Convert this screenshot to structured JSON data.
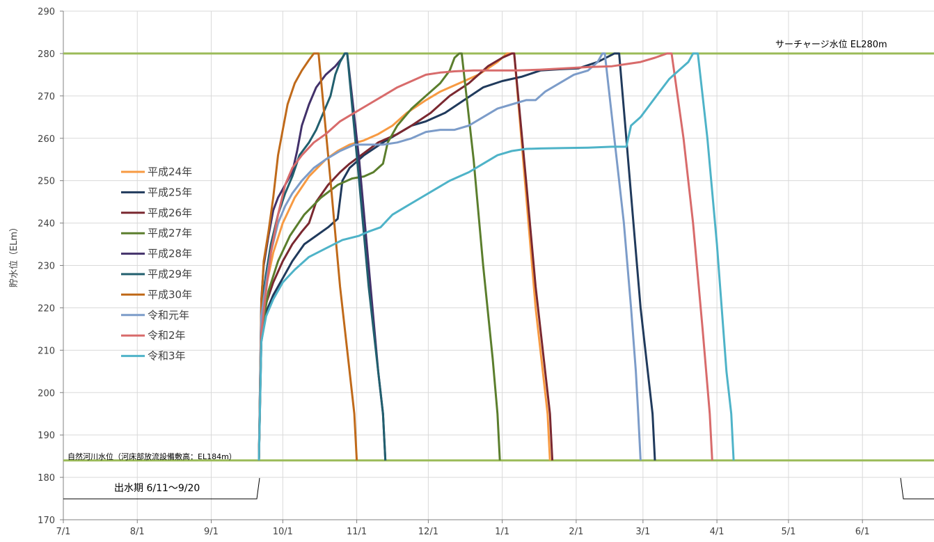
{
  "chart_data": {
    "type": "line",
    "title": "",
    "ylabel": "貯水位（ELm）",
    "ylim": [
      170,
      290
    ],
    "yticks": [
      170,
      180,
      190,
      200,
      210,
      220,
      230,
      240,
      250,
      260,
      270,
      280,
      290
    ],
    "x_tick_labels": [
      "7/1",
      "8/1",
      "9/1",
      "10/1",
      "11/1",
      "12/1",
      "1/1",
      "2/1",
      "3/1",
      "4/1",
      "5/1",
      "6/1"
    ],
    "x_unit": "days since 7/1",
    "xlim": [
      0,
      365
    ],
    "grid": true,
    "legend_position": "left",
    "annotations": {
      "surcharge_label": "サーチャージ水位 EL280m",
      "surcharge_level": 280,
      "river_label": "自然河川水位（河床部放流設備敷高：EL184m）",
      "river_level": 184,
      "flood_period_label": "出水期 6/11～9/20"
    },
    "series": [
      {
        "name": "平成24年",
        "color": "#F79A42",
        "points": [
          [
            82,
            184
          ],
          [
            83,
            215
          ],
          [
            85,
            225
          ],
          [
            88,
            233
          ],
          [
            92,
            240
          ],
          [
            97,
            246
          ],
          [
            103,
            251
          ],
          [
            110,
            255
          ],
          [
            115,
            257
          ],
          [
            120,
            258.5
          ],
          [
            126,
            259.5
          ],
          [
            132,
            261
          ],
          [
            138,
            263
          ],
          [
            144,
            266
          ],
          [
            152,
            269
          ],
          [
            158,
            271
          ],
          [
            166,
            273
          ],
          [
            174,
            275
          ],
          [
            182,
            278
          ],
          [
            186,
            280
          ],
          [
            189,
            280
          ],
          [
            198,
            220
          ],
          [
            203,
            195
          ],
          [
            204,
            184
          ]
        ]
      },
      {
        "name": "平成25年",
        "color": "#203A5C",
        "points": [
          [
            82,
            184
          ],
          [
            83,
            212
          ],
          [
            85,
            219
          ],
          [
            88,
            223
          ],
          [
            92,
            227
          ],
          [
            96,
            231
          ],
          [
            101,
            235
          ],
          [
            106,
            237
          ],
          [
            111,
            239
          ],
          [
            115,
            241
          ],
          [
            117,
            250
          ],
          [
            120,
            253
          ],
          [
            126,
            256
          ],
          [
            134,
            259
          ],
          [
            140,
            261
          ],
          [
            146,
            263
          ],
          [
            152,
            264
          ],
          [
            160,
            266
          ],
          [
            168,
            269
          ],
          [
            176,
            272
          ],
          [
            184,
            273.5
          ],
          [
            192,
            274.5
          ],
          [
            200,
            276
          ],
          [
            208,
            276.3
          ],
          [
            216,
            276.5
          ],
          [
            224,
            278
          ],
          [
            231,
            280
          ],
          [
            233,
            280
          ],
          [
            236,
            260
          ],
          [
            242,
            220
          ],
          [
            247,
            195
          ],
          [
            248,
            184
          ]
        ]
      },
      {
        "name": "平成26年",
        "color": "#7A2830",
        "points": [
          [
            82,
            184
          ],
          [
            83,
            215
          ],
          [
            85,
            221
          ],
          [
            88,
            226
          ],
          [
            92,
            231
          ],
          [
            96,
            235
          ],
          [
            100,
            238
          ],
          [
            103,
            240
          ],
          [
            106,
            245
          ],
          [
            111,
            249
          ],
          [
            116,
            252
          ],
          [
            120,
            254
          ],
          [
            126,
            256.5
          ],
          [
            132,
            259
          ],
          [
            140,
            261
          ],
          [
            146,
            263
          ],
          [
            154,
            266
          ],
          [
            162,
            270
          ],
          [
            170,
            273
          ],
          [
            178,
            277
          ],
          [
            184,
            279
          ],
          [
            188,
            280
          ],
          [
            189,
            280
          ],
          [
            194,
            250
          ],
          [
            198,
            225
          ],
          [
            204,
            195
          ],
          [
            205,
            184
          ]
        ]
      },
      {
        "name": "平成27年",
        "color": "#5B7E2D",
        "points": [
          [
            82,
            184
          ],
          [
            83,
            214
          ],
          [
            86,
            224
          ],
          [
            90,
            231
          ],
          [
            95,
            237
          ],
          [
            101,
            242
          ],
          [
            108,
            246
          ],
          [
            115,
            249
          ],
          [
            121,
            250.5
          ],
          [
            126,
            251
          ],
          [
            130,
            252
          ],
          [
            134,
            254
          ],
          [
            136,
            259
          ],
          [
            140,
            263
          ],
          [
            146,
            267
          ],
          [
            152,
            270
          ],
          [
            158,
            273
          ],
          [
            162,
            276
          ],
          [
            164,
            279
          ],
          [
            166,
            280
          ],
          [
            167,
            280
          ],
          [
            172,
            255
          ],
          [
            176,
            230
          ],
          [
            180,
            208
          ],
          [
            182,
            195
          ],
          [
            183,
            184
          ]
        ]
      },
      {
        "name": "平成28年",
        "color": "#42316A",
        "points": [
          [
            82,
            184
          ],
          [
            83,
            222
          ],
          [
            84,
            230
          ],
          [
            86,
            237
          ],
          [
            88,
            243
          ],
          [
            90,
            246
          ],
          [
            93,
            249
          ],
          [
            96,
            252
          ],
          [
            98,
            257
          ],
          [
            100,
            263
          ],
          [
            103,
            268
          ],
          [
            106,
            272
          ],
          [
            110,
            275
          ],
          [
            114,
            277
          ],
          [
            117,
            279
          ],
          [
            118,
            280
          ],
          [
            119,
            280
          ],
          [
            124,
            255
          ],
          [
            128,
            230
          ],
          [
            132,
            205
          ],
          [
            134,
            195
          ],
          [
            135,
            184
          ]
        ]
      },
      {
        "name": "平成29年",
        "color": "#215F6E",
        "points": [
          [
            82,
            184
          ],
          [
            83,
            220
          ],
          [
            85,
            228
          ],
          [
            87,
            235
          ],
          [
            90,
            242
          ],
          [
            93,
            247
          ],
          [
            96,
            251
          ],
          [
            99,
            256
          ],
          [
            103,
            259
          ],
          [
            106,
            262
          ],
          [
            109,
            266
          ],
          [
            112,
            270
          ],
          [
            114,
            275
          ],
          [
            116,
            278
          ],
          [
            118,
            280
          ],
          [
            119,
            280
          ],
          [
            124,
            250
          ],
          [
            128,
            225
          ],
          [
            132,
            205
          ],
          [
            134,
            195
          ],
          [
            135,
            184
          ]
        ]
      },
      {
        "name": "平成30年",
        "color": "#C06A1A",
        "points": [
          [
            82,
            184
          ],
          [
            83,
            221
          ],
          [
            84,
            231
          ],
          [
            86,
            238
          ],
          [
            87,
            242
          ],
          [
            88,
            246
          ],
          [
            90,
            256
          ],
          [
            92,
            262
          ],
          [
            94,
            268
          ],
          [
            97,
            273
          ],
          [
            100,
            276
          ],
          [
            103,
            278.5
          ],
          [
            105,
            280
          ],
          [
            107,
            280
          ],
          [
            112,
            250
          ],
          [
            116,
            225
          ],
          [
            120,
            205
          ],
          [
            122,
            195
          ],
          [
            123,
            184
          ]
        ]
      },
      {
        "name": "令和元年",
        "color": "#7C9CC9",
        "points": [
          [
            82,
            184
          ],
          [
            83,
            218
          ],
          [
            85,
            226
          ],
          [
            87,
            233
          ],
          [
            90,
            240
          ],
          [
            93,
            244
          ],
          [
            96,
            247
          ],
          [
            100,
            250
          ],
          [
            105,
            253
          ],
          [
            110,
            255
          ],
          [
            116,
            257
          ],
          [
            122,
            258.5
          ],
          [
            128,
            258.5
          ],
          [
            134,
            258.5
          ],
          [
            140,
            259
          ],
          [
            146,
            260
          ],
          [
            152,
            261.5
          ],
          [
            158,
            262
          ],
          [
            164,
            262
          ],
          [
            170,
            263
          ],
          [
            176,
            265
          ],
          [
            182,
            267
          ],
          [
            188,
            268
          ],
          [
            194,
            269
          ],
          [
            198,
            269
          ],
          [
            202,
            271
          ],
          [
            208,
            273
          ],
          [
            214,
            275
          ],
          [
            220,
            276
          ],
          [
            224,
            278
          ],
          [
            226,
            280
          ],
          [
            227,
            280
          ],
          [
            231,
            260
          ],
          [
            235,
            240
          ],
          [
            238,
            220
          ],
          [
            240,
            205
          ],
          [
            241,
            195
          ],
          [
            242,
            184
          ]
        ]
      },
      {
        "name": "令和2年",
        "color": "#D86B6B",
        "points": [
          [
            82,
            184
          ],
          [
            83,
            214
          ],
          [
            85,
            224
          ],
          [
            87,
            233
          ],
          [
            90,
            242
          ],
          [
            93,
            249
          ],
          [
            96,
            253
          ],
          [
            100,
            256
          ],
          [
            105,
            259
          ],
          [
            110,
            261
          ],
          [
            116,
            264
          ],
          [
            122,
            266
          ],
          [
            128,
            268
          ],
          [
            134,
            270
          ],
          [
            140,
            272
          ],
          [
            146,
            273.5
          ],
          [
            152,
            275
          ],
          [
            158,
            275.5
          ],
          [
            164,
            275.8
          ],
          [
            172,
            276
          ],
          [
            180,
            276
          ],
          [
            190,
            276
          ],
          [
            200,
            276.2
          ],
          [
            210,
            276.5
          ],
          [
            220,
            276.8
          ],
          [
            230,
            277
          ],
          [
            236,
            277.5
          ],
          [
            242,
            278
          ],
          [
            248,
            279
          ],
          [
            253,
            280
          ],
          [
            255,
            280
          ],
          [
            260,
            260
          ],
          [
            264,
            240
          ],
          [
            268,
            215
          ],
          [
            271,
            195
          ],
          [
            272,
            184
          ]
        ]
      },
      {
        "name": "令和3年",
        "color": "#4EB3C8",
        "points": [
          [
            82,
            184
          ],
          [
            83,
            212
          ],
          [
            85,
            218
          ],
          [
            88,
            222
          ],
          [
            92,
            226
          ],
          [
            97,
            229
          ],
          [
            103,
            232
          ],
          [
            110,
            234
          ],
          [
            117,
            236
          ],
          [
            124,
            237
          ],
          [
            128,
            238
          ],
          [
            133,
            239
          ],
          [
            138,
            242
          ],
          [
            144,
            244
          ],
          [
            150,
            246
          ],
          [
            156,
            248
          ],
          [
            162,
            250
          ],
          [
            170,
            252
          ],
          [
            176,
            254
          ],
          [
            182,
            256
          ],
          [
            188,
            257
          ],
          [
            194,
            257.5
          ],
          [
            200,
            257.6
          ],
          [
            210,
            257.7
          ],
          [
            220,
            257.8
          ],
          [
            230,
            258
          ],
          [
            236,
            258
          ],
          [
            238,
            263
          ],
          [
            242,
            265
          ],
          [
            246,
            268
          ],
          [
            250,
            271
          ],
          [
            254,
            274
          ],
          [
            258,
            276
          ],
          [
            262,
            278
          ],
          [
            264,
            280
          ],
          [
            266,
            280
          ],
          [
            270,
            260
          ],
          [
            274,
            235
          ],
          [
            278,
            205
          ],
          [
            280,
            195
          ],
          [
            281,
            184
          ]
        ]
      }
    ]
  }
}
